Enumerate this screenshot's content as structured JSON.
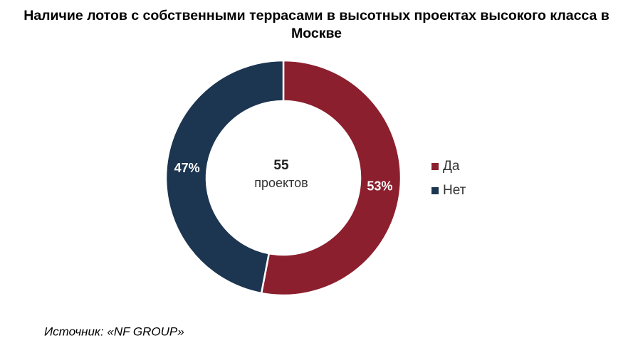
{
  "chart_data": {
    "type": "pie",
    "title": "Наличие лотов с собственными террасами в высотных проектах высокого класса в Москве",
    "categories": [
      "Да",
      "Нет"
    ],
    "values": [
      53,
      47
    ],
    "value_labels": [
      "53%",
      "47%"
    ],
    "colors": [
      "#8c1f2e",
      "#1c3550"
    ],
    "center_value": 55,
    "center_label": "проектов",
    "source": "Источник: «NF GROUP»",
    "legend": "right"
  }
}
